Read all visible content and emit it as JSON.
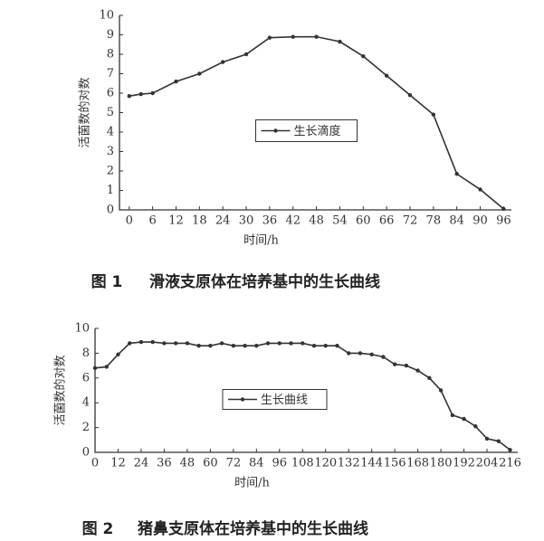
{
  "chart_data": [
    {
      "type": "line",
      "x_label": "时间/h",
      "y_label": "活菌数的对数",
      "xlim": [
        -2.5,
        98
      ],
      "xticks": [
        0,
        6,
        12,
        18,
        24,
        30,
        36,
        42,
        48,
        54,
        60,
        66,
        72,
        78,
        84,
        90,
        96
      ],
      "ylim": [
        0,
        10
      ],
      "yticks": [
        0,
        1,
        2,
        3,
        4,
        5,
        6,
        7,
        8,
        9,
        10
      ],
      "legend": "center",
      "series": [
        {
          "name": "生长滴度",
          "color": "#333333",
          "x": [
            0,
            3,
            6,
            12,
            18,
            24,
            30,
            36,
            42,
            48,
            54,
            60,
            66,
            72,
            78,
            84,
            90,
            96
          ],
          "values": [
            5.85,
            5.95,
            6.0,
            6.6,
            7.0,
            7.6,
            8.0,
            8.85,
            8.9,
            8.9,
            8.65,
            7.9,
            6.9,
            5.9,
            4.9,
            1.85,
            1.05,
            0.05
          ]
        }
      ],
      "caption_label": "图 1",
      "caption": "滑液支原体在培养基中的生长曲线"
    },
    {
      "type": "line",
      "x_label": "时间/h",
      "y_label": "活菌数的对数",
      "xlim": [
        0,
        220
      ],
      "xticks": [
        0,
        12,
        24,
        36,
        48,
        60,
        72,
        84,
        96,
        108,
        120,
        132,
        144,
        156,
        168,
        180,
        192,
        204,
        216
      ],
      "ylim": [
        0,
        10
      ],
      "yticks": [
        0,
        2,
        4,
        6,
        8,
        10
      ],
      "legend": "center",
      "series": [
        {
          "name": "生长曲线",
          "color": "#333333",
          "x": [
            0,
            6,
            12,
            18,
            24,
            30,
            36,
            42,
            48,
            54,
            60,
            66,
            72,
            78,
            84,
            90,
            96,
            102,
            108,
            114,
            120,
            126,
            132,
            138,
            144,
            150,
            156,
            162,
            168,
            174,
            180,
            186,
            192,
            198,
            204,
            210,
            216
          ],
          "values": [
            6.8,
            6.9,
            7.9,
            8.8,
            8.9,
            8.9,
            8.8,
            8.8,
            8.8,
            8.6,
            8.6,
            8.8,
            8.6,
            8.6,
            8.6,
            8.8,
            8.8,
            8.8,
            8.8,
            8.6,
            8.6,
            8.6,
            8.0,
            8.0,
            7.9,
            7.7,
            7.1,
            7.0,
            6.6,
            6.0,
            5.0,
            3.0,
            2.7,
            2.1,
            1.1,
            0.9,
            0.2
          ]
        }
      ],
      "caption_label": "图 2",
      "caption": "猪鼻支原体在培养基中的生长曲线"
    }
  ]
}
